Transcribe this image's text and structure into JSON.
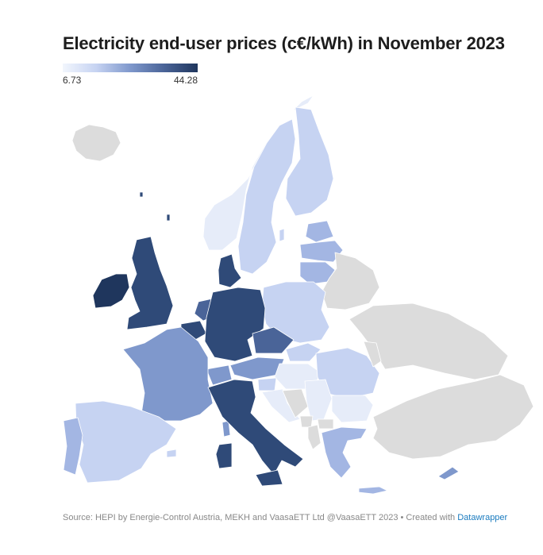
{
  "title": "Electricity end-user prices (c€/kWh) in November 2023",
  "legend": {
    "min_label": "6.73",
    "max_label": "44.28",
    "colors": [
      "#f2f6fd",
      "#c6d3f2",
      "#7f98cc",
      "#4a6498",
      "#1f365d"
    ]
  },
  "footer": {
    "source_text": "Source: HEPI by Energie-Control Austria, MEKH and VaasaETT Ltd @VaasaETT 2023 • Created with",
    "link_text": "Datawrapper"
  },
  "colors": {
    "no_data": "#dcdcdc",
    "darkest": "#1f365d",
    "dark": "#2f4a78",
    "mid_dark": "#4a6498",
    "mid": "#7f98cc",
    "mid_light": "#a3b6e3",
    "light": "#c6d3f2",
    "lightest": "#e6ecf9"
  }
}
